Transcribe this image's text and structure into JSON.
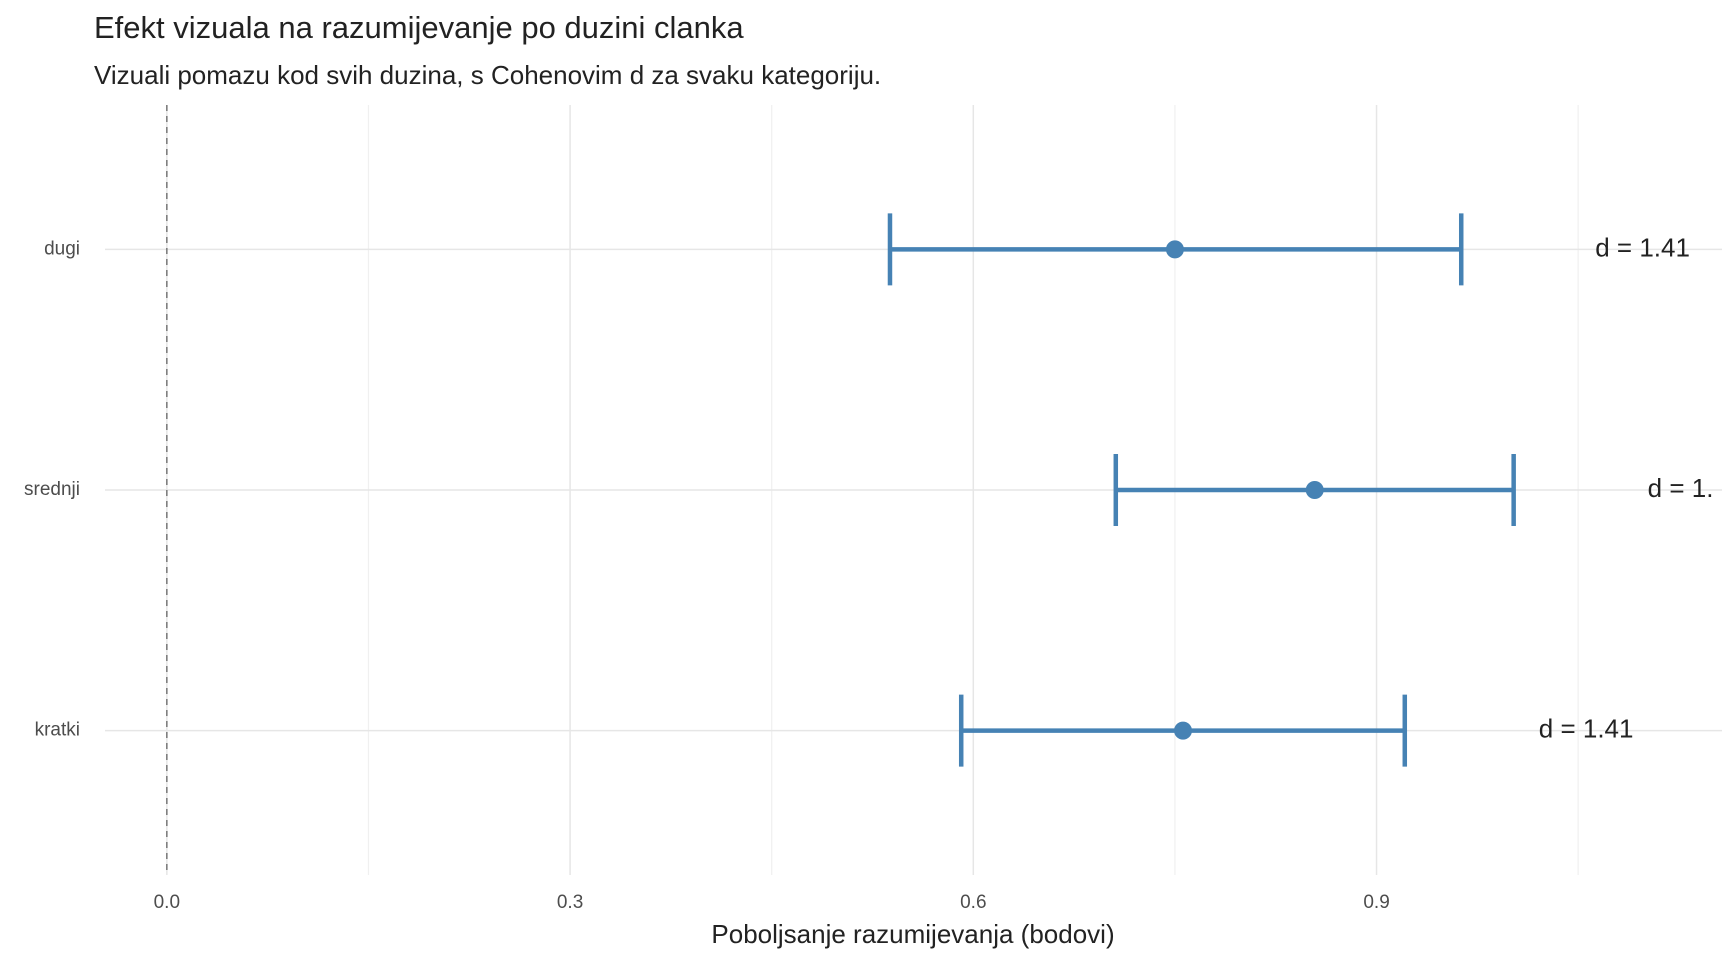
{
  "chart_data": {
    "type": "errorbar",
    "title": "Efekt vizuala na razumijevanje po duzini clanka",
    "subtitle": "Vizuali pomazu kod svih duzina, s Cohenovim d za svaku kategoriju.",
    "x_label": "Poboljsanje razumijevanja (bodovi)",
    "categories": [
      "dugi",
      "srednji",
      "kratki"
    ],
    "values": [
      0.75,
      0.854,
      0.756
    ],
    "lower": [
      0.538,
      0.706,
      0.591
    ],
    "upper": [
      0.963,
      1.002,
      0.921
    ],
    "annotations": [
      "d = 1.41",
      "d = 1.",
      "d = 1.41"
    ],
    "color": "#4682b4",
    "xlim": [
      -0.046,
      1.157
    ],
    "xticks": [
      {
        "value": 0,
        "label": "0.0"
      },
      0.3,
      0.6,
      0.9
    ],
    "xminor": [
      0.15,
      0.45,
      0.75,
      1.05
    ],
    "refline": 0,
    "grid": true
  }
}
